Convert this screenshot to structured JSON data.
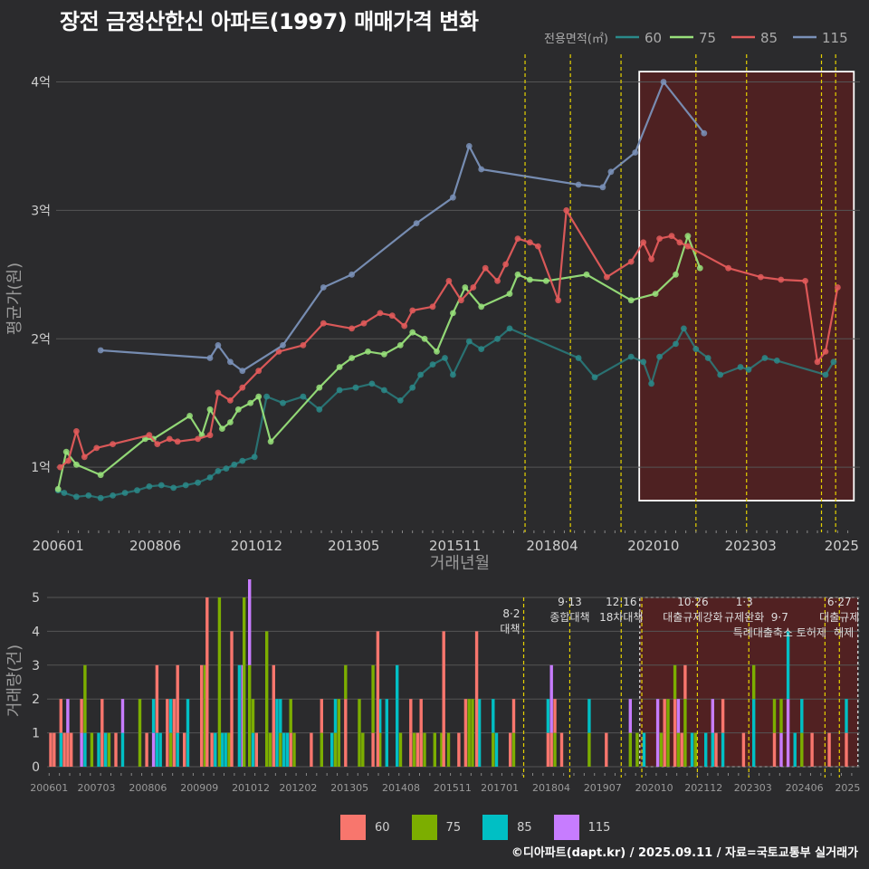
{
  "title": "장전 금정산한신 아파트(1997) 매매가격 변화",
  "footer": "©디아파트(dapt.kr) / 2025.09.11 / 자료=국토교통부 실거래가",
  "colors": {
    "s60_line": "#2a8a8a",
    "s75_line": "#98e07a",
    "s85_line": "#e35b5b",
    "s115_line": "#7a91b8",
    "b60": "#f8766d",
    "b75": "#7cae00",
    "b85": "#00bfc4",
    "b115": "#c77cff",
    "grid": "#555555",
    "highlight_fill": "#6b1a1a",
    "vline": "#e6d200"
  },
  "chart_data": [
    {
      "type": "line",
      "title": "장전 금정산한신 아파트(1997) 매매가격 변화",
      "xlabel": "거래년월",
      "ylabel": "평균가(원)",
      "legend_title": "전용면적(㎡)",
      "legend_position": "top-right",
      "x_ticks": [
        "200601",
        "200806",
        "201012",
        "201305",
        "201511",
        "201804",
        "202010",
        "202303",
        "2025"
      ],
      "y_ticks": [
        {
          "value": 1,
          "label": "1억"
        },
        {
          "value": 2,
          "label": "2억"
        },
        {
          "value": 3,
          "label": "3억"
        },
        {
          "value": 4,
          "label": "4억"
        }
      ],
      "ylim": [
        0.55,
        4.25
      ],
      "xlim": [
        2006.0,
        2025.85
      ],
      "highlight_range": [
        2020.4,
        2025.7
      ],
      "policy_lines": [
        2017.58,
        2018.7,
        2019.95,
        2021.8,
        2023.05,
        2024.9,
        2025.25
      ],
      "series": [
        {
          "name": "60",
          "points": [
            [
              2006.05,
              0.82
            ],
            [
              2006.2,
              0.8
            ],
            [
              2006.5,
              0.77
            ],
            [
              2006.8,
              0.78
            ],
            [
              2007.1,
              0.76
            ],
            [
              2007.4,
              0.78
            ],
            [
              2007.7,
              0.8
            ],
            [
              2008.0,
              0.82
            ],
            [
              2008.3,
              0.85
            ],
            [
              2008.6,
              0.86
            ],
            [
              2008.9,
              0.84
            ],
            [
              2009.2,
              0.86
            ],
            [
              2009.5,
              0.88
            ],
            [
              2009.8,
              0.92
            ],
            [
              2010.0,
              0.97
            ],
            [
              2010.2,
              0.99
            ],
            [
              2010.4,
              1.02
            ],
            [
              2010.6,
              1.05
            ],
            [
              2010.9,
              1.08
            ],
            [
              2011.2,
              1.55
            ],
            [
              2011.6,
              1.5
            ],
            [
              2012.1,
              1.55
            ],
            [
              2012.5,
              1.45
            ],
            [
              2013.0,
              1.6
            ],
            [
              2013.4,
              1.62
            ],
            [
              2013.8,
              1.65
            ],
            [
              2014.1,
              1.6
            ],
            [
              2014.5,
              1.52
            ],
            [
              2014.8,
              1.62
            ],
            [
              2015.0,
              1.72
            ],
            [
              2015.3,
              1.8
            ],
            [
              2015.6,
              1.85
            ],
            [
              2015.8,
              1.72
            ],
            [
              2016.2,
              1.98
            ],
            [
              2016.5,
              1.92
            ],
            [
              2016.9,
              2.0
            ],
            [
              2017.2,
              2.08
            ],
            [
              2018.9,
              1.85
            ],
            [
              2019.3,
              1.7
            ],
            [
              2020.2,
              1.86
            ],
            [
              2020.5,
              1.82
            ],
            [
              2020.7,
              1.65
            ],
            [
              2020.9,
              1.86
            ],
            [
              2021.3,
              1.96
            ],
            [
              2021.5,
              2.08
            ],
            [
              2021.8,
              1.92
            ],
            [
              2022.1,
              1.85
            ],
            [
              2022.4,
              1.72
            ],
            [
              2022.9,
              1.78
            ],
            [
              2023.1,
              1.76
            ],
            [
              2023.5,
              1.85
            ],
            [
              2023.8,
              1.83
            ],
            [
              2025.0,
              1.72
            ],
            [
              2025.2,
              1.82
            ]
          ]
        },
        {
          "name": "75",
          "points": [
            [
              2006.05,
              0.83
            ],
            [
              2006.25,
              1.12
            ],
            [
              2006.5,
              1.02
            ],
            [
              2007.1,
              0.94
            ],
            [
              2008.2,
              1.22
            ],
            [
              2008.4,
              1.22
            ],
            [
              2009.3,
              1.4
            ],
            [
              2009.6,
              1.25
            ],
            [
              2009.8,
              1.45
            ],
            [
              2010.1,
              1.3
            ],
            [
              2010.3,
              1.35
            ],
            [
              2010.5,
              1.45
            ],
            [
              2010.8,
              1.5
            ],
            [
              2011.0,
              1.55
            ],
            [
              2011.3,
              1.2
            ],
            [
              2012.5,
              1.62
            ],
            [
              2013.0,
              1.78
            ],
            [
              2013.3,
              1.85
            ],
            [
              2013.7,
              1.9
            ],
            [
              2014.1,
              1.88
            ],
            [
              2014.5,
              1.95
            ],
            [
              2014.8,
              2.05
            ],
            [
              2015.1,
              2.0
            ],
            [
              2015.4,
              1.9
            ],
            [
              2015.8,
              2.2
            ],
            [
              2016.1,
              2.4
            ],
            [
              2016.5,
              2.25
            ],
            [
              2017.2,
              2.35
            ],
            [
              2017.4,
              2.5
            ],
            [
              2017.7,
              2.46
            ],
            [
              2018.1,
              2.45
            ],
            [
              2019.1,
              2.5
            ],
            [
              2020.2,
              2.3
            ],
            [
              2020.8,
              2.35
            ],
            [
              2021.3,
              2.5
            ],
            [
              2021.6,
              2.8
            ],
            [
              2021.9,
              2.55
            ]
          ]
        },
        {
          "name": "85",
          "points": [
            [
              2006.1,
              1.0
            ],
            [
              2006.3,
              1.05
            ],
            [
              2006.5,
              1.28
            ],
            [
              2006.7,
              1.08
            ],
            [
              2007.0,
              1.15
            ],
            [
              2007.4,
              1.18
            ],
            [
              2008.3,
              1.25
            ],
            [
              2008.5,
              1.18
            ],
            [
              2008.8,
              1.22
            ],
            [
              2009.0,
              1.2
            ],
            [
              2009.5,
              1.22
            ],
            [
              2009.8,
              1.25
            ],
            [
              2010.0,
              1.58
            ],
            [
              2010.3,
              1.52
            ],
            [
              2010.6,
              1.62
            ],
            [
              2011.0,
              1.75
            ],
            [
              2011.5,
              1.9
            ],
            [
              2012.1,
              1.95
            ],
            [
              2012.6,
              2.12
            ],
            [
              2013.3,
              2.08
            ],
            [
              2013.6,
              2.12
            ],
            [
              2014.0,
              2.2
            ],
            [
              2014.3,
              2.18
            ],
            [
              2014.6,
              2.1
            ],
            [
              2014.8,
              2.22
            ],
            [
              2015.3,
              2.25
            ],
            [
              2015.7,
              2.45
            ],
            [
              2016.0,
              2.3
            ],
            [
              2016.3,
              2.4
            ],
            [
              2016.6,
              2.55
            ],
            [
              2016.9,
              2.45
            ],
            [
              2017.1,
              2.58
            ],
            [
              2017.4,
              2.78
            ],
            [
              2017.7,
              2.75
            ],
            [
              2017.9,
              2.72
            ],
            [
              2018.4,
              2.3
            ],
            [
              2018.6,
              3.0
            ],
            [
              2019.6,
              2.48
            ],
            [
              2020.2,
              2.6
            ],
            [
              2020.5,
              2.75
            ],
            [
              2020.7,
              2.62
            ],
            [
              2020.9,
              2.78
            ],
            [
              2021.2,
              2.8
            ],
            [
              2021.4,
              2.75
            ],
            [
              2021.6,
              2.72
            ],
            [
              2022.6,
              2.55
            ],
            [
              2023.4,
              2.48
            ],
            [
              2023.9,
              2.46
            ],
            [
              2024.5,
              2.45
            ],
            [
              2024.8,
              1.82
            ],
            [
              2025.0,
              1.9
            ],
            [
              2025.3,
              2.4
            ]
          ]
        },
        {
          "name": "115",
          "points": [
            [
              2007.1,
              1.91
            ],
            [
              2009.8,
              1.85
            ],
            [
              2010.0,
              1.95
            ],
            [
              2010.3,
              1.82
            ],
            [
              2010.6,
              1.75
            ],
            [
              2011.6,
              1.95
            ],
            [
              2012.6,
              2.4
            ],
            [
              2013.3,
              2.5
            ],
            [
              2014.9,
              2.9
            ],
            [
              2015.8,
              3.1
            ],
            [
              2016.2,
              3.5
            ],
            [
              2016.5,
              3.32
            ],
            [
              2018.9,
              3.2
            ],
            [
              2019.5,
              3.18
            ],
            [
              2019.7,
              3.3
            ],
            [
              2020.3,
              3.45
            ],
            [
              2021.0,
              4.0
            ],
            [
              2022.0,
              3.6
            ]
          ]
        }
      ]
    },
    {
      "type": "bar",
      "title": "거래량",
      "xlabel": "",
      "ylabel": "거래량(건)",
      "stacked": true,
      "ylim": [
        0,
        5
      ],
      "y_ticks": [
        0,
        1,
        2,
        3,
        4,
        5
      ],
      "x_ticks": [
        "200601",
        "200703",
        "200806",
        "200909",
        "201012",
        "201202",
        "201305",
        "201408",
        "201511",
        "201701",
        "201804",
        "201907",
        "202010",
        "202112",
        "202303",
        "202406",
        "2025"
      ],
      "legend": [
        "60",
        "75",
        "85",
        "115"
      ],
      "highlight_range": [
        2020.4,
        2025.7
      ],
      "policy_lines": [
        2017.58,
        2018.7,
        2019.95,
        2020.45,
        2021.8,
        2023.05,
        2024.9,
        2025.25
      ],
      "annotations": [
        {
          "x": 2017.58,
          "date": "8·2",
          "text": "대책"
        },
        {
          "x": 2018.7,
          "date": "9·13",
          "text": "종합대책"
        },
        {
          "x": 2019.95,
          "date": "12·16",
          "text": "18차대책"
        },
        {
          "x": 2021.8,
          "date": "10·26",
          "text": "대출규제강화"
        },
        {
          "x": 2023.05,
          "date": "1·3",
          "text": "규제완화"
        },
        {
          "x": 2023.8,
          "date": "9·7",
          "text": "특례대출축소 토허제"
        },
        {
          "x": 2025.25,
          "date": "6·27",
          "text": "대출규제"
        },
        {
          "x": 2025.6,
          "date": "",
          "text": "해제"
        }
      ]
    }
  ],
  "legend_area": {
    "title": "전용면적(㎡)",
    "items": [
      "60",
      "75",
      "85",
      "115"
    ]
  }
}
